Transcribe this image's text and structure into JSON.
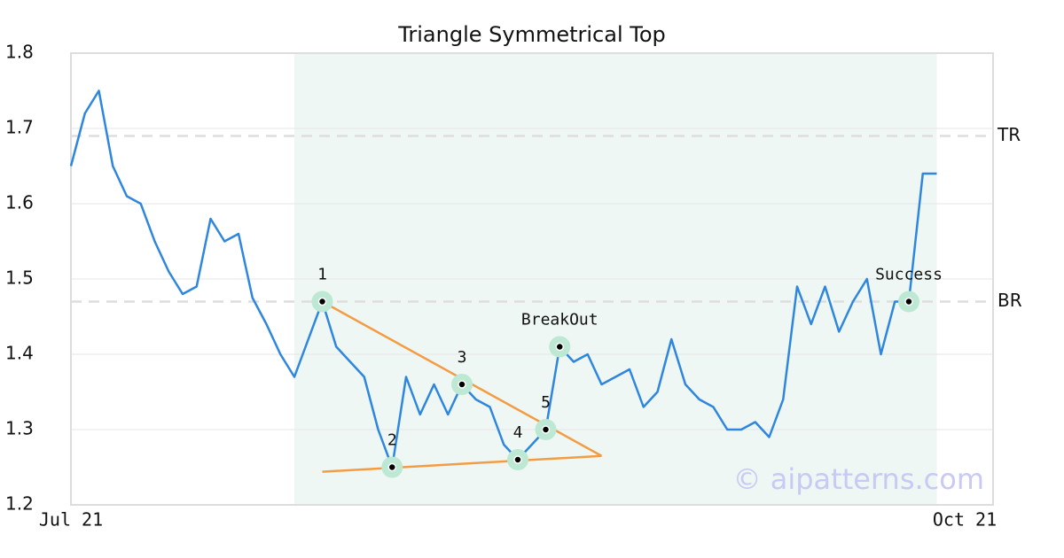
{
  "chart_data": {
    "type": "line",
    "title": "Triangle Symmetrical Top",
    "categories": [
      "Jul 21",
      null,
      null,
      null,
      null,
      null,
      null,
      null,
      null,
      null,
      null,
      null,
      null,
      null,
      null,
      null,
      null,
      null,
      null,
      null,
      null,
      null,
      null,
      null,
      null,
      null,
      null,
      null,
      null,
      null,
      null,
      null,
      null,
      null,
      null,
      null,
      null,
      null,
      null,
      null,
      null,
      null,
      null,
      null,
      null,
      null,
      null,
      null,
      null,
      null,
      null,
      null,
      null,
      null,
      null,
      null,
      null,
      null,
      null,
      null,
      null,
      null,
      null,
      null,
      "Oct 21"
    ],
    "values": [
      1.65,
      1.72,
      1.75,
      1.65,
      1.61,
      1.6,
      1.55,
      1.51,
      1.48,
      1.49,
      1.58,
      1.55,
      1.56,
      1.475,
      1.44,
      1.4,
      1.37,
      1.42,
      1.47,
      1.41,
      1.39,
      1.37,
      1.3,
      1.25,
      1.37,
      1.32,
      1.36,
      1.32,
      1.36,
      1.34,
      1.33,
      1.28,
      1.26,
      1.28,
      1.3,
      1.41,
      1.39,
      1.4,
      1.36,
      1.37,
      1.38,
      1.33,
      1.35,
      1.42,
      1.36,
      1.34,
      1.33,
      1.3,
      1.3,
      1.31,
      1.29,
      1.34,
      1.49,
      1.44,
      1.49,
      1.43,
      1.47,
      1.5,
      1.4,
      1.47,
      1.47,
      1.64,
      1.64,
      null,
      null
    ],
    "color": "#2e86de",
    "ylim": [
      1.2,
      1.8
    ],
    "yticks": [
      1.2,
      1.3,
      1.4,
      1.5,
      1.6,
      1.7,
      1.8
    ],
    "grid": true,
    "highlight_range": [
      16,
      62
    ],
    "highlight_color": "#eef7f3",
    "levels": [
      {
        "label": "TR",
        "value": 1.69
      },
      {
        "label": "BR",
        "value": 1.47
      }
    ],
    "trendlines": [
      {
        "x": [
          18,
          38
        ],
        "values": [
          1.47,
          1.265
        ],
        "color": "#f39c43"
      },
      {
        "x": [
          18,
          38
        ],
        "values": [
          1.244,
          1.265
        ],
        "color": "#f39c43"
      }
    ],
    "points": [
      {
        "label": "1",
        "index": 18,
        "value": 1.47
      },
      {
        "label": "2",
        "index": 23,
        "value": 1.25
      },
      {
        "label": "3",
        "index": 28,
        "value": 1.36
      },
      {
        "label": "4",
        "index": 32,
        "value": 1.26
      },
      {
        "label": "5",
        "index": 34,
        "value": 1.3
      },
      {
        "label": "BreakOut",
        "index": 35,
        "value": 1.41
      },
      {
        "label": "Success",
        "index": 60,
        "value": 1.47
      }
    ],
    "watermark": "© aipatterns.com"
  }
}
